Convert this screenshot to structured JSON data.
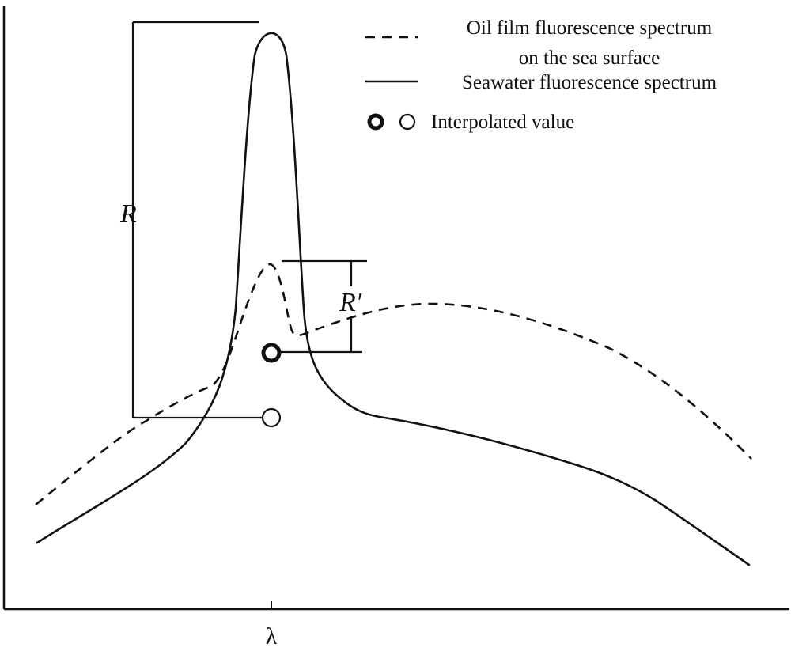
{
  "axis": {
    "x_tick_label": "λ"
  },
  "legend": {
    "items": [
      {
        "style": "dashed",
        "label_lines": [
          "Oil film fluorescence spectrum",
          "on the sea surface"
        ]
      },
      {
        "style": "solid",
        "label_lines": [
          "Seawater fluorescence spectrum"
        ]
      },
      {
        "style": "circles",
        "label_lines": [
          "Interpolated value"
        ]
      }
    ]
  },
  "annotations": {
    "r_label": "R",
    "r_prime_label": "R′"
  },
  "colors": {
    "ink": "#111111",
    "background": "#ffffff"
  }
}
